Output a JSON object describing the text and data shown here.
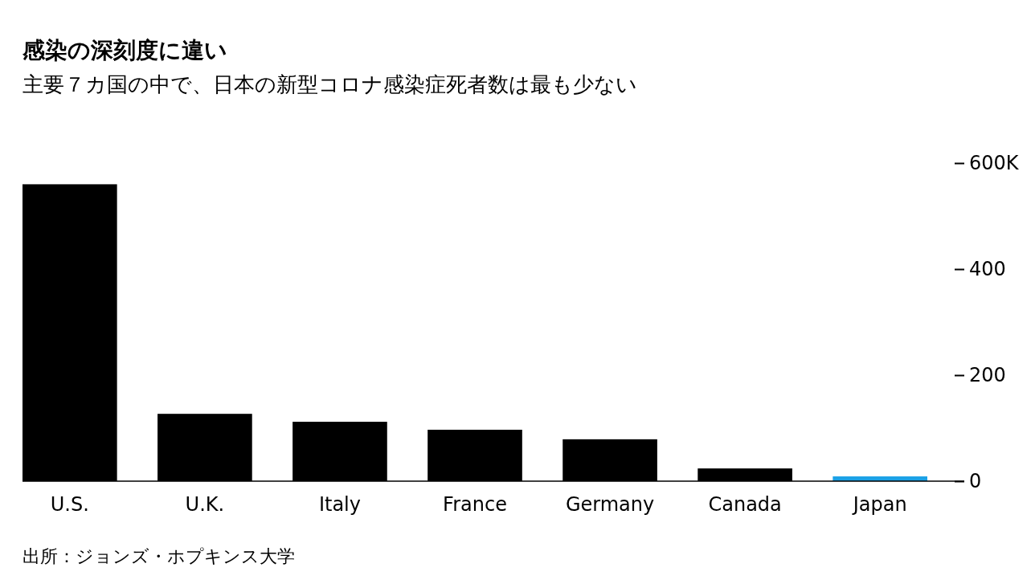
{
  "chart_data": {
    "type": "bar",
    "title": "感染の深刻度に違い",
    "subtitle": "主要７カ国の中で、日本の新型コロナ感染症死者数は最も少ない",
    "categories": [
      "U.S.",
      "U.K.",
      "Italy",
      "France",
      "Germany",
      "Canada",
      "Japan"
    ],
    "values": [
      560,
      127,
      112,
      97,
      79,
      24,
      9
    ],
    "colors": [
      "#000000",
      "#000000",
      "#000000",
      "#000000",
      "#000000",
      "#000000",
      "#1ba1e6"
    ],
    "ylim": [
      0,
      600
    ],
    "yticks": [
      0,
      200,
      400,
      {
        "value": 600,
        "label": "600K"
      }
    ],
    "annotations": [
      "出所：ジョンズ・ホプキンス大学"
    ]
  }
}
